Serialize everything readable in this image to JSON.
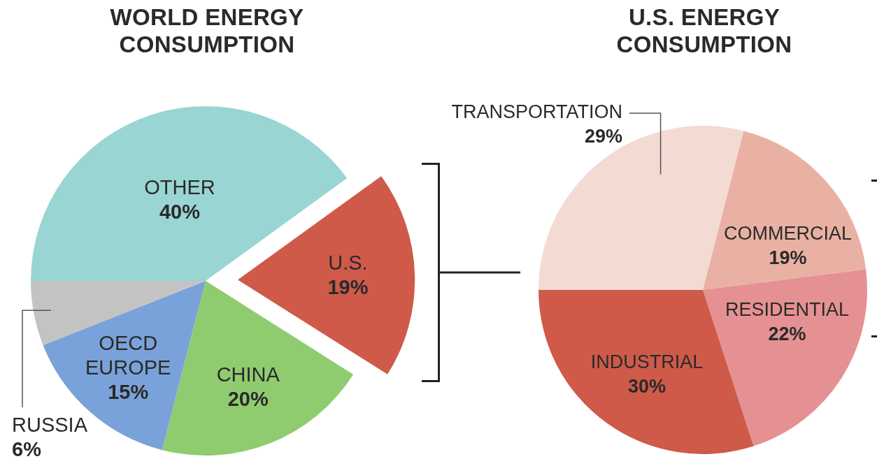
{
  "chart_data": [
    {
      "type": "pie",
      "title": "WORLD ENERGY CONSUMPTION",
      "categories": [
        "OTHER",
        "U.S.",
        "CHINA",
        "OECD EUROPE",
        "RUSSIA"
      ],
      "values": [
        40,
        19,
        20,
        15,
        6
      ],
      "colors": [
        "#99d5d3",
        "#cf5a4a",
        "#8fcc6f",
        "#7aa2da",
        "#c3c3c3"
      ],
      "value_labels": [
        "40%",
        "19%",
        "20%",
        "15%",
        "6%"
      ]
    },
    {
      "type": "pie",
      "title": "U.S. ENERGY CONSUMPTION",
      "categories": [
        "TRANSPORTATION",
        "COMMERCIAL",
        "RESIDENTIAL",
        "INDUSTRIAL"
      ],
      "values": [
        29,
        19,
        22,
        30
      ],
      "colors": [
        "#f3dbd4",
        "#e9b1a3",
        "#e59193",
        "#cf5a4a"
      ],
      "value_labels": [
        "29%",
        "19%",
        "22%",
        "30%"
      ]
    }
  ]
}
